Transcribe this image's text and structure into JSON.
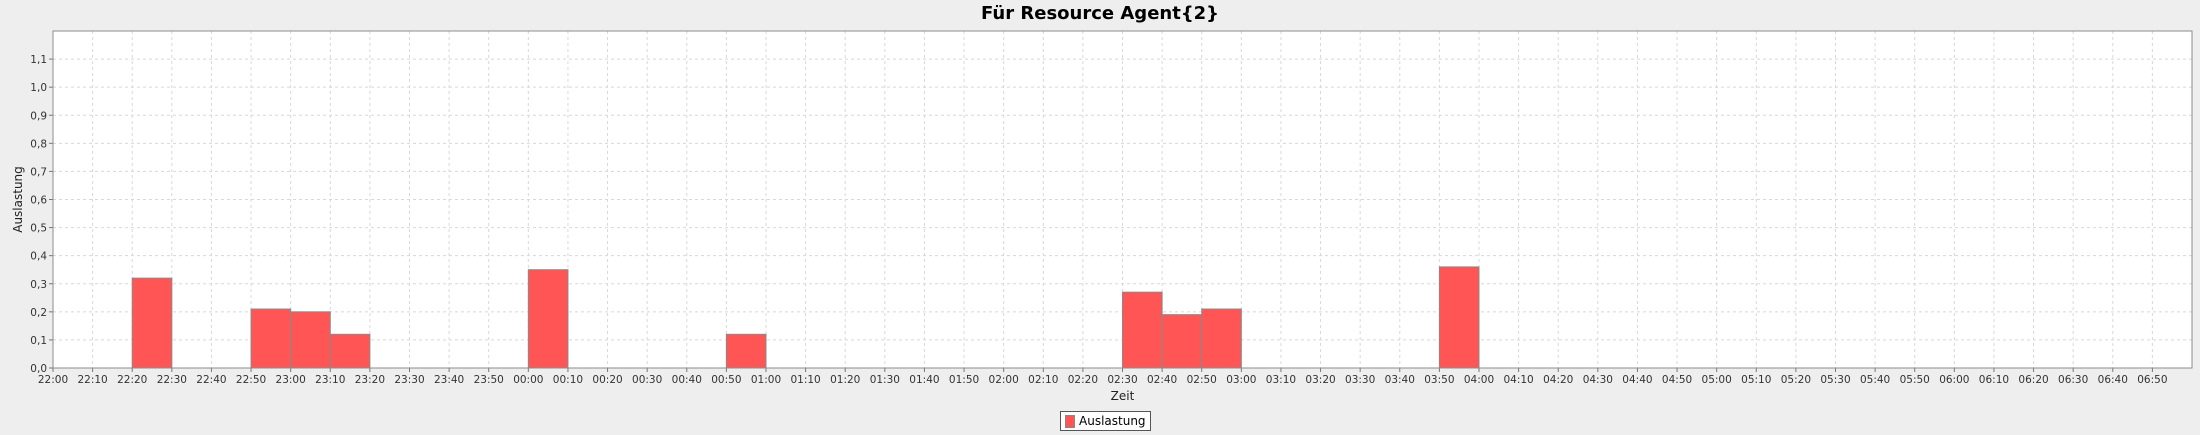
{
  "colors": {
    "bar": "#ff5555",
    "bar_stroke": "#8a8a8a",
    "plot_bg": "#ffffff",
    "grid": "#d8d8d8",
    "page_bg": "#eeeeee"
  },
  "chart_data": {
    "type": "bar",
    "title": "Für Resource Agent{2}",
    "xlabel": "Zeit",
    "ylabel": "Auslastung",
    "ylim": [
      0,
      1.2
    ],
    "yticks": [
      "0,0",
      "0,1",
      "0,2",
      "0,3",
      "0,4",
      "0,5",
      "0,6",
      "0,7",
      "0,8",
      "0,9",
      "1,0",
      "1,1"
    ],
    "xticks": [
      "22:00",
      "22:10",
      "22:20",
      "22:30",
      "22:40",
      "22:50",
      "23:00",
      "23:10",
      "23:20",
      "23:30",
      "23:40",
      "23:50",
      "00:00",
      "00:10",
      "00:20",
      "00:30",
      "00:40",
      "00:50",
      "01:00",
      "01:10",
      "01:20",
      "01:30",
      "01:40",
      "01:50",
      "02:00",
      "02:10",
      "02:20",
      "02:30",
      "02:40",
      "02:50",
      "03:00",
      "03:10",
      "03:20",
      "03:30",
      "03:40",
      "03:50",
      "04:00",
      "04:10",
      "04:20",
      "04:30",
      "04:40",
      "04:50",
      "05:00",
      "05:10",
      "05:20",
      "05:30",
      "05:40",
      "05:50",
      "06:00",
      "06:10",
      "06:20",
      "06:30",
      "06:40",
      "06:50"
    ],
    "grid": true,
    "legend_position": "bottom-center",
    "series": [
      {
        "name": "Auslastung",
        "bars": [
          {
            "start": "22:20",
            "end": "22:30",
            "value": 0.32
          },
          {
            "start": "22:50",
            "end": "23:00",
            "value": 0.21
          },
          {
            "start": "23:00",
            "end": "23:10",
            "value": 0.2
          },
          {
            "start": "23:10",
            "end": "23:20",
            "value": 0.12
          },
          {
            "start": "00:00",
            "end": "00:10",
            "value": 0.35
          },
          {
            "start": "00:50",
            "end": "01:00",
            "value": 0.12
          },
          {
            "start": "02:30",
            "end": "02:40",
            "value": 0.27
          },
          {
            "start": "02:40",
            "end": "02:50",
            "value": 0.19
          },
          {
            "start": "02:50",
            "end": "03:00",
            "value": 0.21
          },
          {
            "start": "03:50",
            "end": "04:00",
            "value": 0.36
          }
        ]
      }
    ]
  }
}
